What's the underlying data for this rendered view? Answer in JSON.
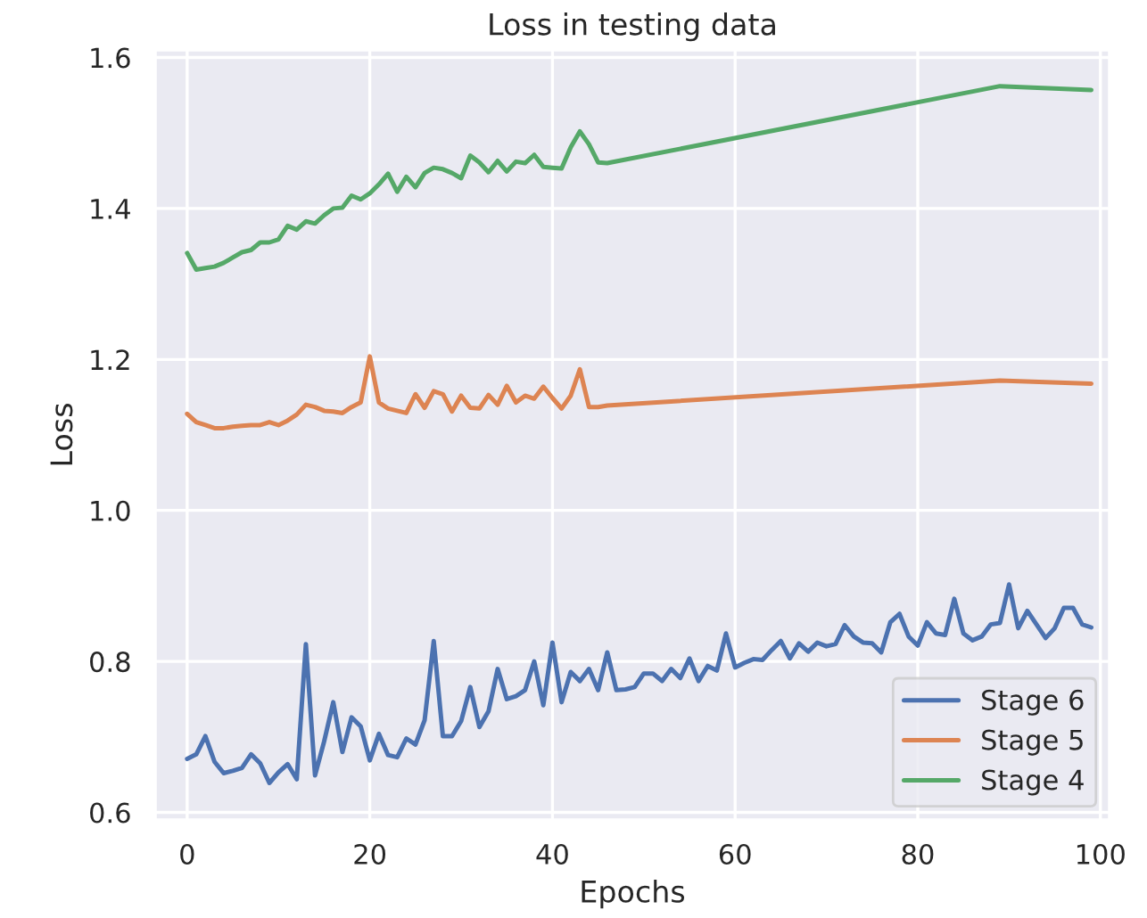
{
  "chart_data": {
    "type": "line",
    "title": "Loss in testing data",
    "xlabel": "Epochs",
    "ylabel": "Loss",
    "xlim": [
      -3.5,
      101
    ],
    "xticks": [
      0,
      20,
      40,
      60,
      80,
      100
    ],
    "ylim": [
      0.59,
      1.61
    ],
    "yticks": [
      0.6,
      0.8,
      {
        "value": 1.0,
        "label": "1.0"
      },
      1.2,
      1.4,
      1.6
    ],
    "grid": true,
    "legend": "bottom right",
    "line_style": "solid",
    "marker": "none",
    "series": [
      {
        "name": "Stage 6",
        "color": "#4c72b0",
        "x": [
          0,
          1,
          2,
          3,
          4,
          5,
          6,
          7,
          8,
          9,
          10,
          11,
          12,
          13,
          14,
          15,
          16,
          17,
          18,
          19,
          20,
          21,
          22,
          23,
          24,
          25,
          26,
          27,
          28,
          29,
          30,
          31,
          32,
          33,
          34,
          35,
          36,
          37,
          38,
          39,
          40,
          41,
          42,
          43,
          44,
          45,
          46,
          47,
          48,
          49,
          50,
          51,
          52,
          53,
          54,
          55,
          56,
          57,
          58,
          59,
          60,
          61,
          62,
          63,
          64,
          65,
          66,
          67,
          68,
          69,
          70,
          71,
          72,
          73,
          74,
          75,
          76,
          77,
          78,
          79,
          80,
          81,
          82,
          83,
          84,
          85,
          86,
          87,
          88,
          89,
          90,
          91,
          92,
          93,
          94,
          95,
          96,
          97,
          98,
          99
        ],
        "values": [
          0.671,
          0.677,
          0.701,
          0.667,
          0.652,
          0.655,
          0.659,
          0.677,
          0.665,
          0.639,
          0.653,
          0.664,
          0.644,
          0.823,
          0.649,
          0.694,
          0.746,
          0.68,
          0.726,
          0.714,
          0.669,
          0.704,
          0.676,
          0.673,
          0.698,
          0.69,
          0.722,
          0.827,
          0.701,
          0.701,
          0.721,
          0.766,
          0.713,
          0.734,
          0.79,
          0.75,
          0.754,
          0.762,
          0.8,
          0.742,
          0.825,
          0.746,
          0.786,
          0.774,
          0.79,
          0.762,
          0.812,
          0.762,
          0.763,
          0.766,
          0.784,
          0.784,
          0.774,
          0.79,
          0.778,
          0.804,
          0.774,
          0.794,
          0.788,
          0.837,
          0.792,
          0.798,
          0.803,
          0.802,
          0.815,
          0.827,
          0.804,
          0.824,
          0.813,
          0.825,
          0.82,
          0.823,
          0.848,
          0.833,
          0.825,
          0.824,
          0.812,
          0.852,
          0.863,
          0.833,
          0.821,
          0.852,
          0.837,
          0.835,
          0.883,
          0.837,
          0.828,
          0.833,
          0.849,
          0.851,
          0.902,
          0.844,
          0.867,
          0.849,
          0.831,
          0.844,
          0.871,
          0.871,
          0.849,
          0.845
        ]
      },
      {
        "name": "Stage 5",
        "color": "#dd8452",
        "x": [
          0,
          1,
          2,
          3,
          4,
          5,
          6,
          7,
          8,
          9,
          10,
          11,
          12,
          13,
          14,
          15,
          16,
          17,
          18,
          19,
          20,
          21,
          22,
          23,
          24,
          25,
          26,
          27,
          28,
          29,
          30,
          31,
          32,
          33,
          34,
          35,
          36,
          37,
          38,
          39,
          40,
          41,
          42,
          43,
          44,
          45,
          46,
          89,
          99
        ],
        "values": [
          1.128,
          1.117,
          1.113,
          1.109,
          1.109,
          1.111,
          1.112,
          1.113,
          1.113,
          1.117,
          1.113,
          1.119,
          1.127,
          1.14,
          1.137,
          1.132,
          1.131,
          1.129,
          1.137,
          1.143,
          1.204,
          1.143,
          1.135,
          1.132,
          1.129,
          1.154,
          1.136,
          1.158,
          1.154,
          1.131,
          1.152,
          1.136,
          1.135,
          1.153,
          1.14,
          1.165,
          1.143,
          1.152,
          1.148,
          1.164,
          1.149,
          1.135,
          1.152,
          1.187,
          1.137,
          1.137,
          1.139,
          1.172,
          1.168
        ]
      },
      {
        "name": "Stage 4",
        "color": "#55a868",
        "x": [
          0,
          1,
          2,
          3,
          4,
          5,
          6,
          7,
          8,
          9,
          10,
          11,
          12,
          13,
          14,
          15,
          16,
          17,
          18,
          19,
          20,
          21,
          22,
          23,
          24,
          25,
          26,
          27,
          28,
          29,
          30,
          31,
          32,
          33,
          34,
          35,
          36,
          37,
          38,
          39,
          40,
          41,
          42,
          43,
          44,
          45,
          46,
          89,
          99
        ],
        "values": [
          1.341,
          1.319,
          1.321,
          1.323,
          1.328,
          1.335,
          1.342,
          1.345,
          1.355,
          1.355,
          1.359,
          1.377,
          1.372,
          1.383,
          1.38,
          1.391,
          1.4,
          1.401,
          1.417,
          1.412,
          1.42,
          1.432,
          1.446,
          1.422,
          1.442,
          1.428,
          1.447,
          1.454,
          1.452,
          1.447,
          1.44,
          1.47,
          1.461,
          1.448,
          1.463,
          1.449,
          1.462,
          1.46,
          1.471,
          1.455,
          1.454,
          1.453,
          1.481,
          1.502,
          1.485,
          1.461,
          1.46,
          1.562,
          1.557
        ]
      }
    ]
  }
}
